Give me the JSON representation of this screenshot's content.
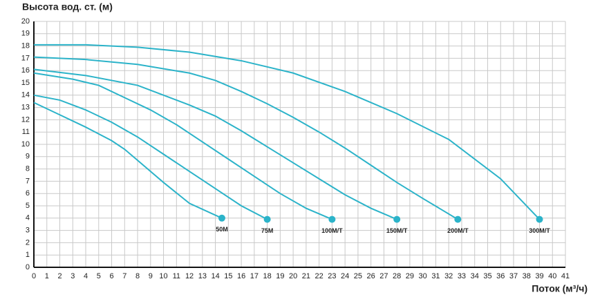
{
  "chart_data": {
    "type": "line",
    "title": "Высота вод. ст. (м)",
    "x_label": "Поток (м³/ч)",
    "xlim": [
      0,
      41
    ],
    "ylim": [
      0,
      20
    ],
    "xticks": [
      0,
      1,
      2,
      3,
      4,
      5,
      6,
      7,
      8,
      9,
      10,
      11,
      12,
      13,
      14,
      15,
      16,
      17,
      18,
      19,
      20,
      21,
      22,
      23,
      24,
      25,
      26,
      27,
      28,
      29,
      30,
      31,
      32,
      33,
      34,
      35,
      36,
      37,
      38,
      39,
      40,
      41
    ],
    "yticks": [
      0,
      1,
      2,
      3,
      4,
      5,
      6,
      7,
      8,
      9,
      10,
      11,
      12,
      13,
      14,
      15,
      16,
      17,
      18,
      19,
      20
    ],
    "grid": true,
    "series": [
      {
        "name": "50M",
        "color": "#2bb3c9",
        "x": [
          0,
          2,
          4,
          6,
          7,
          8,
          10,
          12,
          14.5
        ],
        "values": [
          13.4,
          12.4,
          11.4,
          10.3,
          9.6,
          8.7,
          6.9,
          5.2,
          4
        ]
      },
      {
        "name": "75M",
        "color": "#2bb3c9",
        "x": [
          0,
          2,
          4,
          6,
          8,
          10,
          12,
          14,
          16,
          18
        ],
        "values": [
          14,
          13.6,
          12.8,
          11.8,
          10.6,
          9.2,
          7.8,
          6.4,
          5,
          3.9
        ]
      },
      {
        "name": "100M/T",
        "color": "#2bb3c9",
        "x": [
          0,
          3,
          5,
          7,
          9,
          11,
          13,
          15,
          17,
          19,
          21,
          23
        ],
        "values": [
          15.8,
          15.3,
          14.8,
          13.8,
          12.8,
          11.6,
          10.2,
          8.8,
          7.4,
          6,
          4.8,
          3.9
        ]
      },
      {
        "name": "150M/T",
        "color": "#2bb3c9",
        "x": [
          0,
          4,
          8,
          10,
          12,
          14,
          16,
          18,
          20,
          22,
          24,
          26,
          28
        ],
        "values": [
          16.1,
          15.6,
          14.8,
          14,
          13.2,
          12.3,
          11.1,
          9.8,
          8.5,
          7.2,
          5.9,
          4.8,
          3.9
        ]
      },
      {
        "name": "200M/T",
        "color": "#2bb3c9",
        "x": [
          0,
          4,
          8,
          12,
          14,
          16,
          18,
          20,
          22,
          24,
          26,
          28,
          30,
          32.7
        ],
        "values": [
          17.1,
          16.9,
          16.5,
          15.8,
          15.2,
          14.3,
          13.3,
          12.2,
          11,
          9.7,
          8.3,
          6.9,
          5.6,
          3.9
        ]
      },
      {
        "name": "300M/T",
        "color": "#2bb3c9",
        "x": [
          0,
          4,
          8,
          12,
          16,
          20,
          24,
          28,
          32,
          36,
          39
        ],
        "values": [
          18.1,
          18.1,
          17.9,
          17.5,
          16.8,
          15.8,
          14.3,
          12.5,
          10.4,
          7.2,
          3.9
        ]
      }
    ]
  }
}
